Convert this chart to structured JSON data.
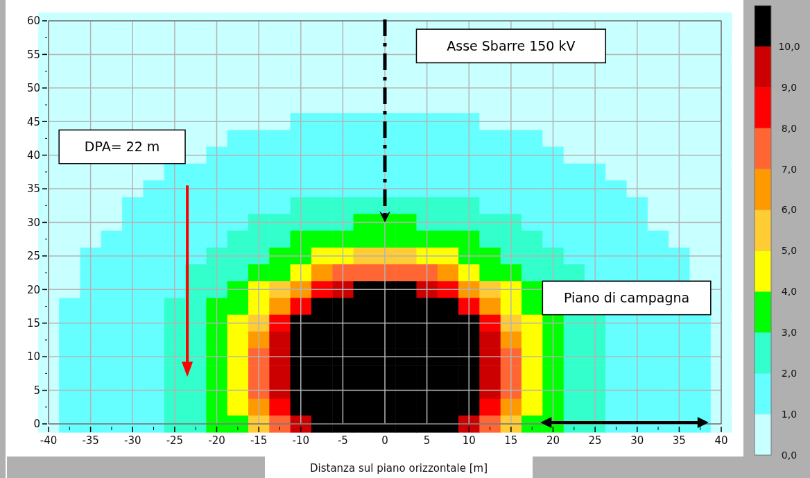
{
  "chart_data": {
    "type": "heatmap",
    "xlabel": "Distanza sul piano orizzontale [m]",
    "categories": [
      "-40",
      null,
      "-35",
      null,
      "-30",
      null,
      "-25",
      null,
      "-20",
      null,
      "-15",
      null,
      "-10",
      null,
      "-5",
      null,
      "0",
      null,
      "5",
      null,
      "10",
      null,
      "15",
      null,
      "20",
      null,
      "25",
      null,
      "30",
      null,
      "35",
      null,
      "40"
    ],
    "y_categories": [
      "60",
      null,
      "55",
      null,
      "50",
      null,
      "45",
      null,
      "40",
      null,
      "35",
      null,
      "30",
      null,
      "25",
      null,
      "20",
      null,
      "15",
      null,
      "10",
      null,
      "5",
      null,
      "0"
    ],
    "cells": [
      [
        0.5,
        0.5,
        0.5,
        0.5,
        0.5,
        0.5,
        0.5,
        0.5,
        0.5,
        0.5,
        0.5,
        0.5,
        0.5,
        0.5,
        0.5,
        0.5,
        0.5,
        0.5,
        0.5,
        0.5,
        0.5,
        0.5,
        0.5,
        0.5,
        0.5,
        0.5,
        0.5,
        0.5,
        0.5,
        0.5,
        0.5,
        0.5,
        0.5
      ],
      [
        0.5,
        0.5,
        0.5,
        0.5,
        0.5,
        0.5,
        0.5,
        0.5,
        0.5,
        0.5,
        0.5,
        0.5,
        0.5,
        0.5,
        0.5,
        0.5,
        0.5,
        0.5,
        null,
        null,
        null,
        null,
        null,
        null,
        null,
        null,
        null,
        0.5,
        0.5,
        0.5,
        0.5,
        0.5,
        0.5
      ],
      [
        0.5,
        0.5,
        0.5,
        0.5,
        0.5,
        0.5,
        0.5,
        0.5,
        0.5,
        0.5,
        0.5,
        0.5,
        0.5,
        0.5,
        0.5,
        0.5,
        0.5,
        0.5,
        null,
        null,
        null,
        null,
        null,
        null,
        null,
        null,
        null,
        0.5,
        0.5,
        0.5,
        0.5,
        0.5,
        0.5
      ],
      [
        0.5,
        0.5,
        0.5,
        0.5,
        0.5,
        0.5,
        0.5,
        0.5,
        0.5,
        0.5,
        0.5,
        0.5,
        0.5,
        0.5,
        0.5,
        0.5,
        0.5,
        0.5,
        0.5,
        0.5,
        0.5,
        0.5,
        0.5,
        0.5,
        0.5,
        0.5,
        0.5,
        0.5,
        0.5,
        0.5,
        0.5,
        0.5,
        0.5
      ],
      [
        0.5,
        0.5,
        0.5,
        0.5,
        0.5,
        0.5,
        0.5,
        0.5,
        0.5,
        0.5,
        0.5,
        0.5,
        0.5,
        0.5,
        0.5,
        0.5,
        0.5,
        0.5,
        0.5,
        0.5,
        0.5,
        0.5,
        0.5,
        0.5,
        0.5,
        0.5,
        0.5,
        0.5,
        0.5,
        0.5,
        0.5,
        0.5,
        0.5
      ],
      [
        0.5,
        0.5,
        0.5,
        0.5,
        0.5,
        0.5,
        0.5,
        0.5,
        0.5,
        0.5,
        0.5,
        0.5,
        0.5,
        0.5,
        0.5,
        0.5,
        0.5,
        0.5,
        0.5,
        0.5,
        0.5,
        0.5,
        0.5,
        0.5,
        0.5,
        0.5,
        0.5,
        0.5,
        0.5,
        0.5,
        0.5,
        0.5,
        0.5
      ],
      [
        0.5,
        0.5,
        0.5,
        0.5,
        0.5,
        0.5,
        0.5,
        0.5,
        0.5,
        0.5,
        0.5,
        0.5,
        1.5,
        1.5,
        1.5,
        1.5,
        1.5,
        1.5,
        1.5,
        1.5,
        1.5,
        0.5,
        0.5,
        0.5,
        0.5,
        0.5,
        0.5,
        0.5,
        0.5,
        0.5,
        0.5,
        0.5,
        0.5
      ],
      [
        0.5,
        null,
        null,
        null,
        null,
        null,
        null,
        0.5,
        0.5,
        1.5,
        1.5,
        1.5,
        1.5,
        1.5,
        1.5,
        1.5,
        1.5,
        1.5,
        1.5,
        1.5,
        1.5,
        1.5,
        1.5,
        1.5,
        0.5,
        0.5,
        0.5,
        0.5,
        0.5,
        0.5,
        0.5,
        0.5,
        0.5
      ],
      [
        0.5,
        null,
        null,
        null,
        null,
        null,
        null,
        0.5,
        1.5,
        1.5,
        1.5,
        1.5,
        1.5,
        1.5,
        1.5,
        1.5,
        1.5,
        1.5,
        1.5,
        1.5,
        1.5,
        1.5,
        1.5,
        1.5,
        1.5,
        0.5,
        0.5,
        0.5,
        0.5,
        0.5,
        0.5,
        0.5,
        0.5
      ],
      [
        0.5,
        0.5,
        0.5,
        0.5,
        0.5,
        0.5,
        1.5,
        1.5,
        1.5,
        1.5,
        1.5,
        1.5,
        1.5,
        1.5,
        1.5,
        1.5,
        1.5,
        1.5,
        1.5,
        1.5,
        1.5,
        1.5,
        1.5,
        1.5,
        1.5,
        1.5,
        1.5,
        0.5,
        0.5,
        0.5,
        0.5,
        0.5,
        0.5
      ],
      [
        0.5,
        0.5,
        0.5,
        0.5,
        0.5,
        1.5,
        1.5,
        1.5,
        1.5,
        1.5,
        1.5,
        1.5,
        1.5,
        1.5,
        1.5,
        1.5,
        1.5,
        1.5,
        1.5,
        1.5,
        1.5,
        1.5,
        1.5,
        1.5,
        1.5,
        1.5,
        1.5,
        1.5,
        0.5,
        0.5,
        0.5,
        0.5,
        0.5
      ],
      [
        0.5,
        0.5,
        0.5,
        0.5,
        1.5,
        1.5,
        1.5,
        1.5,
        1.5,
        1.5,
        1.5,
        1.5,
        2.5,
        2.5,
        2.5,
        2.5,
        2.5,
        2.5,
        2.5,
        2.5,
        2.5,
        1.5,
        1.5,
        1.5,
        1.5,
        1.5,
        1.5,
        1.5,
        1.5,
        0.5,
        0.5,
        0.5,
        0.5
      ],
      [
        0.5,
        0.5,
        0.5,
        0.5,
        1.5,
        1.5,
        1.5,
        1.5,
        1.5,
        1.5,
        2.5,
        2.5,
        2.5,
        2.5,
        2.5,
        3.5,
        3.5,
        3.5,
        2.5,
        2.5,
        2.5,
        2.5,
        2.5,
        1.5,
        1.5,
        1.5,
        1.5,
        1.5,
        1.5,
        0.5,
        0.5,
        0.5,
        0.5
      ],
      [
        0.5,
        0.5,
        0.5,
        1.5,
        1.5,
        1.5,
        1.5,
        1.5,
        1.5,
        2.5,
        2.5,
        2.5,
        3.5,
        3.5,
        3.5,
        3.5,
        3.5,
        3.5,
        3.5,
        3.5,
        3.5,
        2.5,
        2.5,
        2.5,
        1.5,
        1.5,
        1.5,
        1.5,
        1.5,
        1.5,
        0.5,
        0.5,
        0.5
      ],
      [
        0.5,
        0.5,
        1.5,
        1.5,
        1.5,
        1.5,
        1.5,
        1.5,
        2.5,
        2.5,
        2.5,
        3.5,
        3.5,
        4.5,
        4.5,
        5.5,
        5.5,
        5.5,
        4.5,
        4.5,
        3.5,
        3.5,
        2.5,
        2.5,
        2.5,
        1.5,
        1.5,
        1.5,
        1.5,
        1.5,
        1.5,
        0.5,
        0.5
      ],
      [
        0.5,
        0.5,
        1.5,
        1.5,
        1.5,
        1.5,
        1.5,
        2.5,
        2.5,
        2.5,
        3.5,
        3.5,
        4.5,
        6.5,
        7.5,
        7.5,
        7.5,
        7.5,
        7.5,
        6.5,
        4.5,
        3.5,
        3.5,
        2.5,
        2.5,
        2.5,
        1.5,
        1.5,
        1.5,
        1.5,
        1.5,
        0.5,
        0.5
      ],
      [
        0.5,
        0.5,
        1.5,
        1.5,
        1.5,
        1.5,
        1.5,
        2.5,
        2.5,
        3.5,
        4.5,
        5.5,
        6.5,
        8.5,
        9.5,
        10.5,
        10.5,
        10.5,
        9.5,
        8.5,
        6.5,
        5.5,
        4.5,
        3.5,
        null,
        null,
        null,
        null,
        null,
        null,
        null,
        null,
        0.5
      ],
      [
        0.5,
        1.5,
        1.5,
        1.5,
        1.5,
        1.5,
        2.5,
        2.5,
        3.5,
        3.5,
        4.5,
        6.5,
        8.5,
        10.5,
        10.5,
        10.5,
        10.5,
        10.5,
        10.5,
        10.5,
        8.5,
        6.5,
        4.5,
        3.5,
        null,
        null,
        null,
        null,
        null,
        null,
        null,
        null,
        0.5
      ],
      [
        0.5,
        1.5,
        1.5,
        1.5,
        1.5,
        1.5,
        2.5,
        2.5,
        3.5,
        4.5,
        5.5,
        8.5,
        10.5,
        10.5,
        10.5,
        10.5,
        10.5,
        10.5,
        10.5,
        10.5,
        10.5,
        8.5,
        5.5,
        4.5,
        3.5,
        2.5,
        2.5,
        1.5,
        1.5,
        1.5,
        1.5,
        1.5,
        0.5
      ],
      [
        0.5,
        1.5,
        1.5,
        1.5,
        1.5,
        1.5,
        2.5,
        2.5,
        3.5,
        4.5,
        6.5,
        9.5,
        10.5,
        10.5,
        10.5,
        10.5,
        10.5,
        10.5,
        10.5,
        10.5,
        10.5,
        9.5,
        6.5,
        4.5,
        3.5,
        2.5,
        2.5,
        1.5,
        1.5,
        1.5,
        1.5,
        1.5,
        0.5
      ],
      [
        0.5,
        1.5,
        1.5,
        1.5,
        1.5,
        1.5,
        2.5,
        2.5,
        3.5,
        4.5,
        7.5,
        9.5,
        10.5,
        10.5,
        10.5,
        10.5,
        10.5,
        10.5,
        10.5,
        10.5,
        10.5,
        9.5,
        7.5,
        4.5,
        3.5,
        2.5,
        2.5,
        1.5,
        1.5,
        1.5,
        1.5,
        1.5,
        0.5
      ],
      [
        0.5,
        1.5,
        1.5,
        1.5,
        1.5,
        1.5,
        2.5,
        2.5,
        3.5,
        4.5,
        7.5,
        9.5,
        10.5,
        10.5,
        10.5,
        10.5,
        10.5,
        10.5,
        10.5,
        10.5,
        10.5,
        9.5,
        7.5,
        4.5,
        3.5,
        2.5,
        2.5,
        1.5,
        1.5,
        1.5,
        1.5,
        1.5,
        0.5
      ],
      [
        0.5,
        1.5,
        1.5,
        1.5,
        1.5,
        1.5,
        2.5,
        2.5,
        3.5,
        4.5,
        7.5,
        9.5,
        10.5,
        10.5,
        10.5,
        10.5,
        10.5,
        10.5,
        10.5,
        10.5,
        10.5,
        9.5,
        7.5,
        4.5,
        3.5,
        2.5,
        2.5,
        1.5,
        1.5,
        1.5,
        1.5,
        1.5,
        0.5
      ],
      [
        0.5,
        1.5,
        1.5,
        1.5,
        1.5,
        1.5,
        2.5,
        2.5,
        3.5,
        4.5,
        6.5,
        8.5,
        10.5,
        10.5,
        10.5,
        10.5,
        10.5,
        10.5,
        10.5,
        10.5,
        10.5,
        8.5,
        6.5,
        4.5,
        3.5,
        2.5,
        2.5,
        1.5,
        1.5,
        1.5,
        1.5,
        1.5,
        0.5
      ],
      [
        0.5,
        1.5,
        1.5,
        1.5,
        1.5,
        1.5,
        2.5,
        2.5,
        3.5,
        3.5,
        5.5,
        7.5,
        9.5,
        10.5,
        10.5,
        10.5,
        10.5,
        10.5,
        10.5,
        10.5,
        9.5,
        7.5,
        5.5,
        3.5,
        3.5,
        2.5,
        2.5,
        1.5,
        1.5,
        1.5,
        1.5,
        1.5,
        0.5
      ]
    ],
    "colors": [
      "#c8ffff",
      "#66ffff",
      "#33ffcc",
      "#00ff00",
      "#ffff00",
      "#ffcc33",
      "#ff9900",
      "#ff6633",
      "#ff0000",
      "#cc0000",
      "#000000"
    ],
    "clim": [
      0,
      11
    ],
    "cticks": [
      {
        "value": 0,
        "label": "0,0"
      },
      {
        "value": 1,
        "label": "1,0"
      },
      {
        "value": 2,
        "label": "2,0"
      },
      {
        "value": 3,
        "label": "3,0"
      },
      {
        "value": 4,
        "label": "4,0"
      },
      {
        "value": 5,
        "label": "5,0"
      },
      {
        "value": 6,
        "label": "6,0"
      },
      {
        "value": 7,
        "label": "7,0"
      },
      {
        "value": 8,
        "label": "8,0"
      },
      {
        "value": 9,
        "label": "9,0"
      },
      {
        "value": 10,
        "label": "10,0"
      }
    ],
    "grid": true,
    "annotations": [
      "Asse Sbarre 150 kV",
      "DPA= 22 m",
      "Piano di campagna"
    ]
  }
}
